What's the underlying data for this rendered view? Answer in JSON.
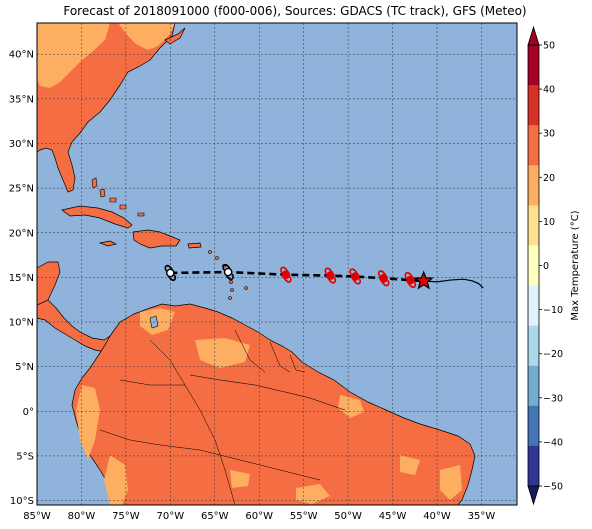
{
  "title": "Forecast of 2018091000 (f000-006), Sources: GDACS (TC track), GFS (Meteo)",
  "map": {
    "lon_range": [
      -85,
      -31
    ],
    "lat_range": [
      -10.5,
      43.5
    ],
    "lon_ticks": [
      {
        "value": -85,
        "label": "85°W"
      },
      {
        "value": -80,
        "label": "80°W"
      },
      {
        "value": -75,
        "label": "75°W"
      },
      {
        "value": -70,
        "label": "70°W"
      },
      {
        "value": -65,
        "label": "65°W"
      },
      {
        "value": -60,
        "label": "60°W"
      },
      {
        "value": -55,
        "label": "55°W"
      },
      {
        "value": -50,
        "label": "50°W"
      },
      {
        "value": -45,
        "label": "45°W"
      },
      {
        "value": -40,
        "label": "40°W"
      },
      {
        "value": -35,
        "label": "35°W"
      }
    ],
    "lat_ticks": [
      {
        "value": 40,
        "label": "40°N"
      },
      {
        "value": 35,
        "label": "35°N"
      },
      {
        "value": 30,
        "label": "30°N"
      },
      {
        "value": 25,
        "label": "25°N"
      },
      {
        "value": 20,
        "label": "20°N"
      },
      {
        "value": 15,
        "label": "15°N"
      },
      {
        "value": 10,
        "label": "10°N"
      },
      {
        "value": 5,
        "label": "5°N"
      },
      {
        "value": 0,
        "label": "0°"
      },
      {
        "value": -5,
        "label": "5°S"
      },
      {
        "value": -10,
        "label": "10°S"
      }
    ],
    "grid": true,
    "ocean_color": "#8fb3da",
    "land_color": "#f46d43",
    "warm_land_color": "#fdae61",
    "track": {
      "forecast_points": [
        {
          "lon": -70.0,
          "lat": 15.5,
          "color": "#000000"
        },
        {
          "lon": -63.5,
          "lat": 15.6,
          "color": "#000000"
        },
        {
          "lon": -57.0,
          "lat": 15.3,
          "color": "#e00000"
        },
        {
          "lon": -52.0,
          "lat": 15.2,
          "color": "#e00000"
        },
        {
          "lon": -49.2,
          "lat": 15.1,
          "color": "#e00000"
        },
        {
          "lon": -46.0,
          "lat": 14.9,
          "color": "#e00000"
        },
        {
          "lon": -43.0,
          "lat": 14.7,
          "color": "#e00000"
        }
      ],
      "current_position": {
        "lon": -41.5,
        "lat": 14.6
      },
      "past_track": [
        [
          -41.5,
          14.6
        ],
        [
          -40.0,
          14.5
        ],
        [
          -38.5,
          14.7
        ],
        [
          -37.0,
          14.8
        ],
        [
          -36.0,
          14.6
        ],
        [
          -35.3,
          14.3
        ],
        [
          -34.8,
          13.8
        ]
      ]
    }
  },
  "colorbar": {
    "label": "Max Temperature (°C)",
    "ticks": [
      "50",
      "40",
      "30",
      "20",
      "10",
      "0",
      "−10",
      "−20",
      "−30",
      "−40",
      "−50"
    ],
    "min": -50,
    "max": 50,
    "bands": [
      "#313695",
      "#4575b4",
      "#74add1",
      "#abd9e9",
      "#e0f3f8",
      "#ffffbf",
      "#fee090",
      "#fdae61",
      "#f46d43",
      "#d73027",
      "#a50026"
    ],
    "under_color": "#1a1a60",
    "over_color": "#a50026"
  }
}
